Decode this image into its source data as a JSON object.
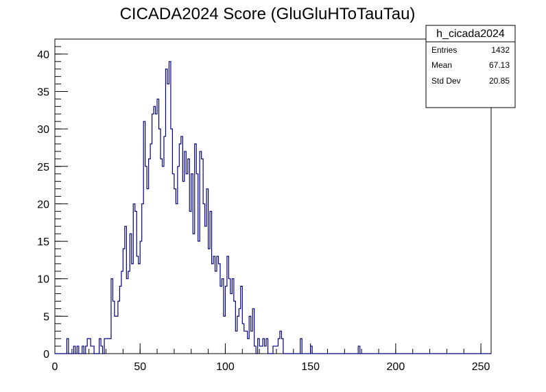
{
  "chart_data": {
    "type": "histogram",
    "title": "CICADA2024 Score (GluGluHToTauTau)",
    "xlabel": "",
    "ylabel": "",
    "xlim": [
      0,
      256
    ],
    "ylim": [
      0,
      42
    ],
    "bin_width": 1,
    "x_ticks": [
      0,
      50,
      100,
      150,
      200,
      250
    ],
    "y_ticks": [
      0,
      5,
      10,
      15,
      20,
      25,
      30,
      35,
      40
    ],
    "line_color": "#000080",
    "stats_box": {
      "name": "h_cicada2024",
      "rows": [
        {
          "label": "Entries",
          "value": "1432"
        },
        {
          "label": "Mean",
          "value": "67.13"
        },
        {
          "label": "Std Dev",
          "value": "20.85"
        }
      ]
    },
    "bins_start": 0,
    "counts": [
      0,
      0,
      0,
      0,
      0,
      0,
      0,
      2,
      0,
      0,
      0,
      1,
      0,
      1,
      0,
      0,
      1,
      0,
      1,
      2,
      2,
      1,
      1,
      0,
      0,
      0,
      2,
      1,
      0,
      2,
      2,
      2,
      2,
      10,
      7,
      5,
      5,
      7,
      9,
      11,
      14,
      17,
      10,
      11,
      16,
      12,
      20,
      19,
      13,
      12,
      15,
      20,
      31,
      25,
      22,
      26,
      28,
      32,
      33,
      32,
      34,
      30,
      26,
      25,
      29,
      38,
      36,
      39,
      30,
      24,
      22,
      20,
      25,
      28,
      29,
      23,
      27,
      24,
      26,
      19,
      24,
      16,
      28,
      24,
      15,
      27,
      26,
      20,
      17,
      22,
      14,
      19,
      12,
      13,
      11,
      13,
      12,
      9,
      10,
      5,
      9,
      13,
      10,
      8,
      10,
      7,
      3,
      5,
      6,
      9,
      4,
      3,
      3,
      2,
      5,
      3,
      6,
      1,
      0,
      2,
      1,
      1,
      2,
      1,
      2,
      0,
      0,
      0,
      1,
      1,
      1,
      2,
      3,
      2,
      0,
      0,
      0,
      0,
      0,
      0,
      0,
      0,
      0,
      0,
      2,
      0,
      0,
      0,
      0,
      0,
      1,
      0,
      0,
      0,
      0,
      0,
      0,
      0,
      0,
      0,
      0,
      0,
      0,
      0,
      0,
      0,
      0,
      0,
      0,
      0,
      0,
      0,
      0,
      0,
      0,
      0,
      0,
      0,
      1,
      0,
      0,
      0,
      0,
      0,
      0,
      0,
      0,
      0,
      0,
      0,
      0,
      0,
      0,
      0,
      0,
      0,
      0,
      0,
      0,
      0,
      0,
      0,
      0,
      0,
      0,
      0,
      0,
      0,
      0,
      0,
      0,
      0,
      0,
      0,
      0,
      0,
      0,
      0,
      0,
      0,
      0,
      0,
      0,
      0,
      0,
      0,
      0,
      0,
      0,
      0,
      0,
      0,
      0,
      0,
      0,
      0,
      0,
      0,
      0,
      0,
      0,
      0,
      0,
      0,
      0,
      0,
      0,
      0,
      0,
      0,
      0,
      0,
      0,
      0,
      0,
      0
    ]
  }
}
